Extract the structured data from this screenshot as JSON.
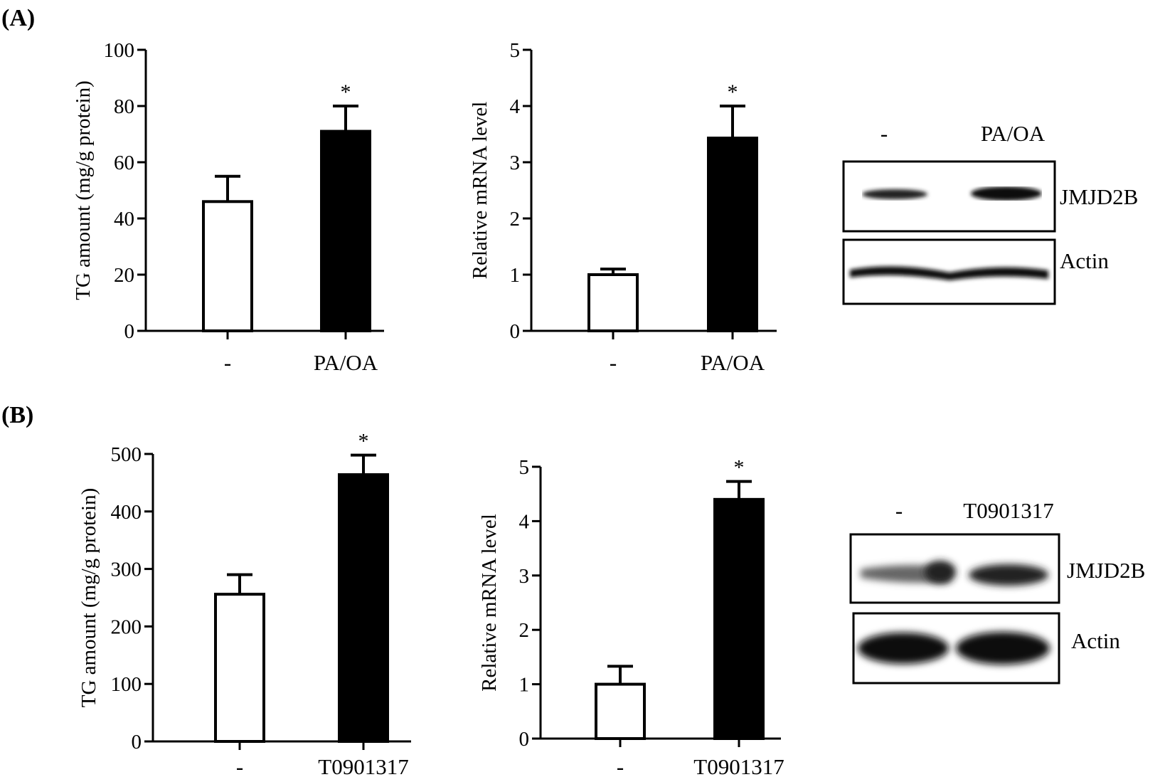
{
  "panels": [
    {
      "label": "(A)"
    },
    {
      "label": "(B)"
    }
  ],
  "chart_data": [
    {
      "type": "bar",
      "panel": "(A)",
      "ylabel": "TG amount  (mg/g  protein)",
      "ylim": [
        0,
        100
      ],
      "yticks": [
        "0",
        "20",
        "40",
        "60",
        "80",
        "100"
      ],
      "categories": [
        "-",
        "PA/OA"
      ],
      "values": [
        46,
        71
      ],
      "errors": [
        9,
        9
      ],
      "bar_fill": [
        "#ffffff",
        "#000000"
      ],
      "significance": [
        "",
        "*"
      ]
    },
    {
      "type": "bar",
      "panel": "(A)",
      "ylabel": "Relative  mRNA level",
      "ylim": [
        0,
        5
      ],
      "yticks": [
        "0",
        "1",
        "2",
        "3",
        "4",
        "5"
      ],
      "categories": [
        "-",
        "PA/OA"
      ],
      "values": [
        1.0,
        3.43
      ],
      "errors": [
        0.1,
        0.57
      ],
      "bar_fill": [
        "#ffffff",
        "#000000"
      ],
      "significance": [
        "",
        "*"
      ]
    },
    {
      "type": "bar",
      "panel": "(B)",
      "ylabel": "TG amount  (mg/g  protein)",
      "ylim": [
        0,
        500
      ],
      "yticks": [
        "0",
        "100",
        "200",
        "300",
        "400",
        "500"
      ],
      "categories": [
        "-",
        "T0901317"
      ],
      "values": [
        256,
        464
      ],
      "errors": [
        34,
        34
      ],
      "bar_fill": [
        "#ffffff",
        "#000000"
      ],
      "significance": [
        "",
        "*"
      ]
    },
    {
      "type": "bar",
      "panel": "(B)",
      "ylabel": "Relative  mRNA level",
      "ylim": [
        0,
        5
      ],
      "yticks": [
        "0",
        "1",
        "2",
        "3",
        "4",
        "5"
      ],
      "categories": [
        "-",
        "T0901317"
      ],
      "values": [
        1.0,
        4.4
      ],
      "errors": [
        0.33,
        0.33
      ],
      "bar_fill": [
        "#ffffff",
        "#000000"
      ],
      "significance": [
        "",
        "*"
      ]
    }
  ],
  "blots": [
    {
      "panel": "(A)",
      "lanes": [
        "-",
        "PA/OA"
      ],
      "rows": [
        {
          "label": "JMJD2B"
        },
        {
          "label": "Actin"
        }
      ]
    },
    {
      "panel": "(B)",
      "lanes": [
        "-",
        "T0901317"
      ],
      "rows": [
        {
          "label": "JMJD2B"
        },
        {
          "label": "Actin"
        }
      ]
    }
  ]
}
